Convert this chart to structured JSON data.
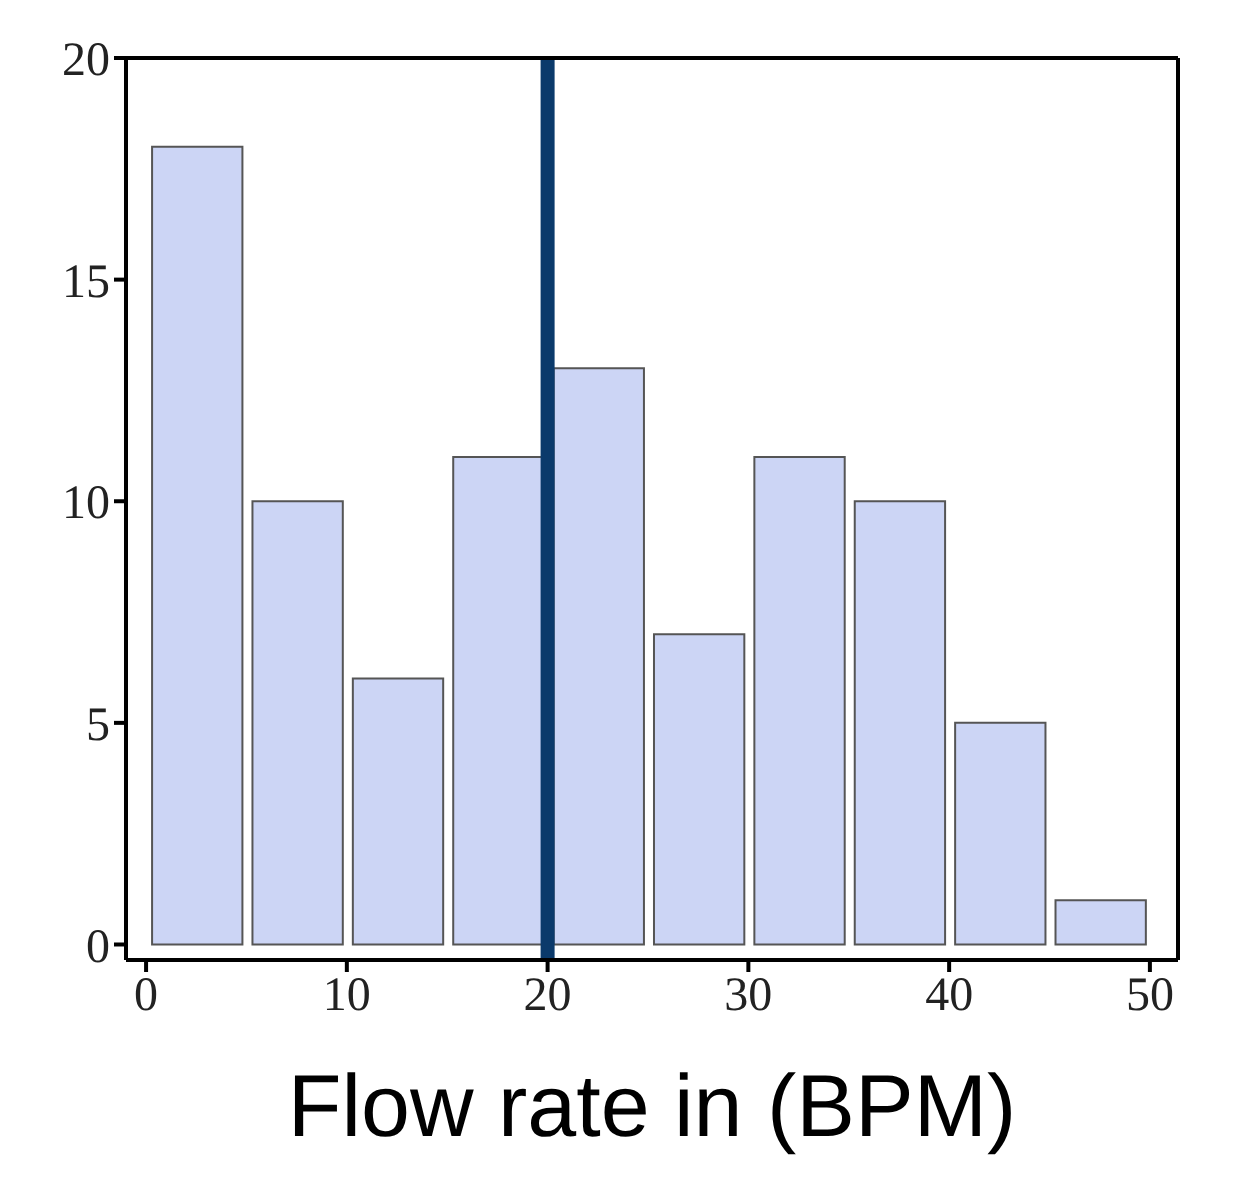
{
  "chart_data": {
    "type": "histogram",
    "xlabel": "Flow rate in (BPM)",
    "bins": [
      0,
      5,
      10,
      15,
      20,
      25,
      30,
      35,
      40,
      45,
      50
    ],
    "values": [
      18,
      10,
      6,
      11,
      13,
      7,
      11,
      10,
      5,
      1
    ],
    "color": "#ccd5f5",
    "xlim": [
      -1,
      51.4
    ],
    "ylim": [
      -0.35,
      20
    ],
    "xticks": [
      0,
      10,
      20,
      30,
      40,
      50
    ],
    "yticks": [
      0,
      5,
      10,
      15,
      20
    ],
    "ref_lines": [
      {
        "axis": "x",
        "value": 20,
        "color": "#0b3a6b"
      }
    ],
    "grid": false
  }
}
